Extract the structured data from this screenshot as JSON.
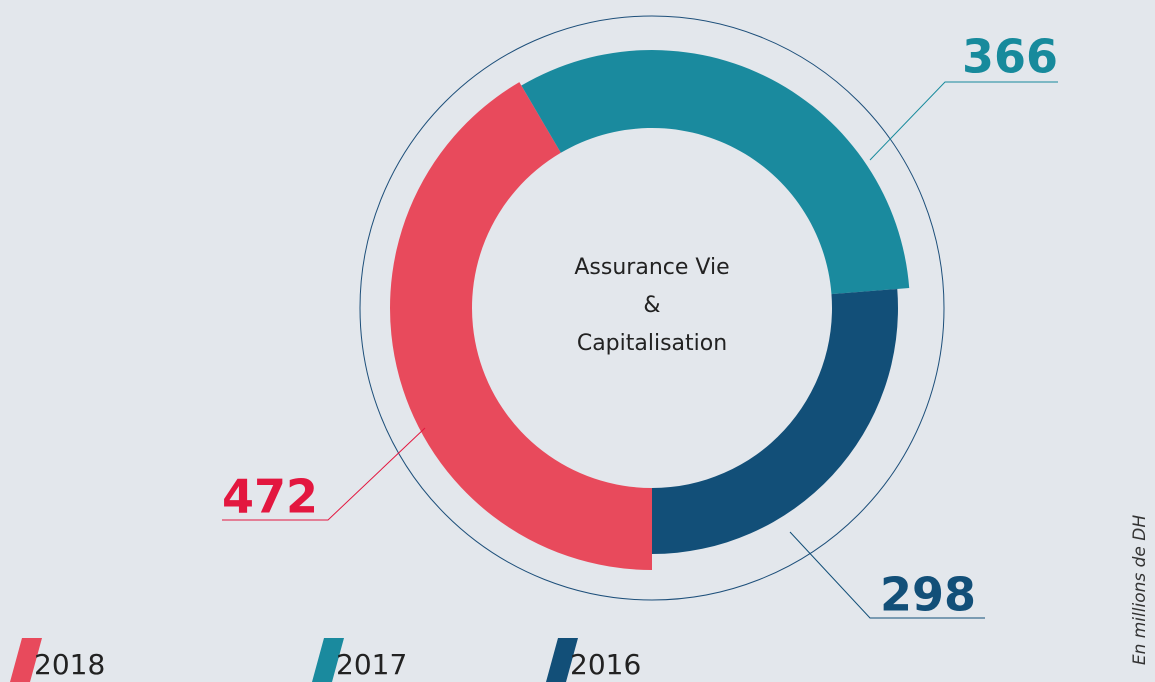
{
  "chart_data": {
    "type": "donut",
    "center_label": [
      "Assurance Vie",
      "&",
      "Capitalisation"
    ],
    "categories": [
      "2018",
      "2017",
      "2016"
    ],
    "values": [
      472,
      366,
      298
    ],
    "colors": [
      "#e84a5c",
      "#1a8a9e",
      "#124f78"
    ],
    "label_colors": [
      "#e3173f",
      "#178a9c",
      "#124f78"
    ],
    "unit_note": "En millions de DH"
  }
}
